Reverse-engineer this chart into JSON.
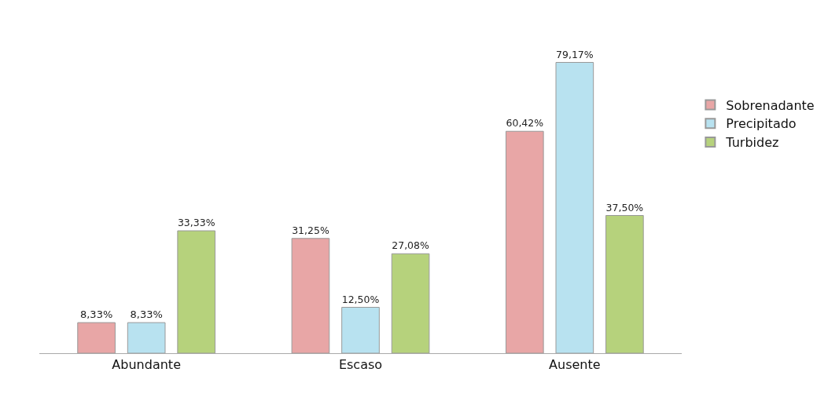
{
  "chart_data": {
    "type": "bar",
    "categories": [
      "Abundante",
      "Escaso",
      "Ausente"
    ],
    "series": [
      {
        "name": "Sobrenadante",
        "color": "#e8a6a6",
        "values": [
          8.33,
          31.25,
          60.42
        ],
        "value_labels": [
          "8,33%",
          "31,25%",
          "60,42%"
        ]
      },
      {
        "name": "Precipitado",
        "color": "#b8e2f0",
        "values": [
          8.33,
          12.5,
          79.17
        ],
        "value_labels": [
          "8,33%",
          "12,50%",
          "79,17%"
        ]
      },
      {
        "name": "Turbidez",
        "color": "#b6d27c",
        "values": [
          33.33,
          27.08,
          37.5
        ],
        "value_labels": [
          "33,33%",
          "27,08%",
          "37,50%"
        ]
      }
    ],
    "legend": "right"
  }
}
